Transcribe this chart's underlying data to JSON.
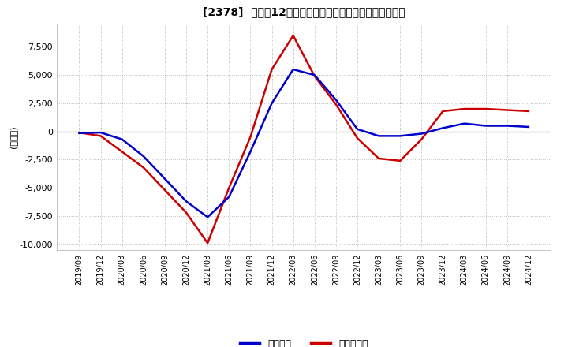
{
  "title": "[2378]  利益の12か月移動合計の対前年同期増減額の推移",
  "ylabel": "(百万円)",
  "ylim": [
    -10500,
    9500
  ],
  "yticks": [
    -10000,
    -7500,
    -5000,
    -2500,
    0,
    2500,
    5000,
    7500
  ],
  "legend_labels": [
    "経常利益",
    "当期純利益"
  ],
  "line_colors": [
    "#0000cc",
    "#cc0000"
  ],
  "dates": [
    "2019/09",
    "2019/12",
    "2020/03",
    "2020/06",
    "2020/09",
    "2020/12",
    "2021/03",
    "2021/06",
    "2021/09",
    "2021/12",
    "2022/03",
    "2022/06",
    "2022/09",
    "2022/12",
    "2023/03",
    "2023/06",
    "2023/09",
    "2023/12",
    "2024/03",
    "2024/06",
    "2024/09",
    "2024/12"
  ],
  "keijo_rieki": [
    -150,
    -100,
    -700,
    -2200,
    -4200,
    -6200,
    -7600,
    -5800,
    -1800,
    2500,
    5500,
    5000,
    2800,
    200,
    -400,
    -400,
    -200,
    300,
    700,
    500,
    500,
    400
  ],
  "touki_jun_rieki": [
    -100,
    -400,
    -1800,
    -3200,
    -5200,
    -7200,
    -9900,
    -5000,
    -500,
    5500,
    8500,
    4900,
    2400,
    -600,
    -2400,
    -2600,
    -700,
    1800,
    2000,
    2000,
    1900,
    1800
  ],
  "background_color": "#ffffff",
  "grid_color": "#aaaaaa",
  "grid_style": ":"
}
